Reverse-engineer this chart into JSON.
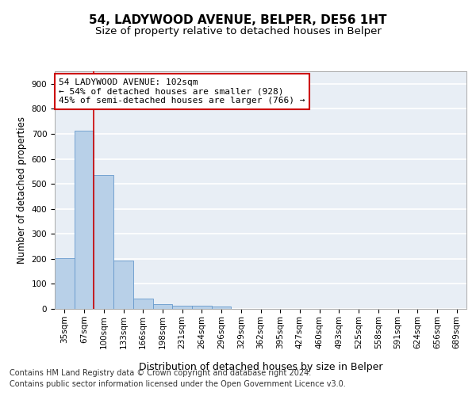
{
  "title1": "54, LADYWOOD AVENUE, BELPER, DE56 1HT",
  "title2": "Size of property relative to detached houses in Belper",
  "xlabel": "Distribution of detached houses by size in Belper",
  "ylabel": "Number of detached properties",
  "categories": [
    "35sqm",
    "67sqm",
    "100sqm",
    "133sqm",
    "166sqm",
    "198sqm",
    "231sqm",
    "264sqm",
    "296sqm",
    "329sqm",
    "362sqm",
    "395sqm",
    "427sqm",
    "460sqm",
    "493sqm",
    "525sqm",
    "558sqm",
    "591sqm",
    "624sqm",
    "656sqm",
    "689sqm"
  ],
  "values": [
    202,
    714,
    534,
    194,
    41,
    19,
    14,
    12,
    8,
    0,
    0,
    0,
    0,
    0,
    0,
    0,
    0,
    0,
    0,
    0,
    0
  ],
  "bar_color": "#b8d0e8",
  "bar_edge_color": "#6699cc",
  "vline_color": "#cc0000",
  "vline_position": 1.5,
  "annotation_text": "54 LADYWOOD AVENUE: 102sqm\n← 54% of detached houses are smaller (928)\n45% of semi-detached houses are larger (766) →",
  "annotation_box_color": "#ffffff",
  "annotation_border_color": "#cc0000",
  "ylim": [
    0,
    950
  ],
  "yticks": [
    0,
    100,
    200,
    300,
    400,
    500,
    600,
    700,
    800,
    900
  ],
  "footnote_line1": "Contains HM Land Registry data © Crown copyright and database right 2024.",
  "footnote_line2": "Contains public sector information licensed under the Open Government Licence v3.0.",
  "bg_color": "#e8eef5",
  "grid_color": "#ffffff",
  "title1_fontsize": 11,
  "title2_fontsize": 9.5,
  "xlabel_fontsize": 9,
  "ylabel_fontsize": 8.5,
  "tick_fontsize": 7.5,
  "annot_fontsize": 8,
  "footnote_fontsize": 7
}
